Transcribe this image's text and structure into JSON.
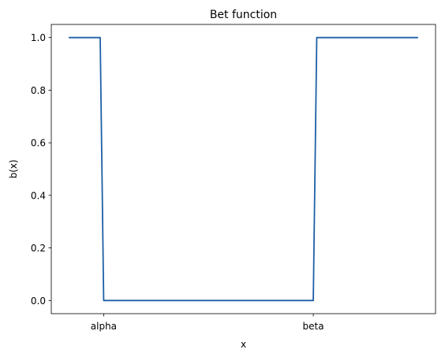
{
  "chart_data": {
    "type": "line",
    "title": "Bet function",
    "xlabel": "x",
    "ylabel": "b(x)",
    "x": [
      0.0,
      0.09,
      0.1,
      0.7,
      0.71,
      1.0
    ],
    "xlim": [
      -0.05,
      1.05
    ],
    "x_ticks": [
      {
        "value": 0.1,
        "label": "alpha"
      },
      {
        "value": 0.7,
        "label": "beta"
      }
    ],
    "ylim": [
      -0.05,
      1.05
    ],
    "y_ticks": [
      {
        "value": 0.0,
        "label": "0.0"
      },
      {
        "value": 0.2,
        "label": "0.2"
      },
      {
        "value": 0.4,
        "label": "0.4"
      },
      {
        "value": 0.6,
        "label": "0.6"
      },
      {
        "value": 0.8,
        "label": "0.8"
      },
      {
        "value": 1.0,
        "label": "1.0"
      }
    ],
    "series": [
      {
        "values": [
          1.0,
          1.0,
          0.0,
          0.0,
          1.0,
          1.0
        ],
        "color": "#1f5fa6"
      }
    ],
    "grid": false,
    "legend": "none"
  }
}
